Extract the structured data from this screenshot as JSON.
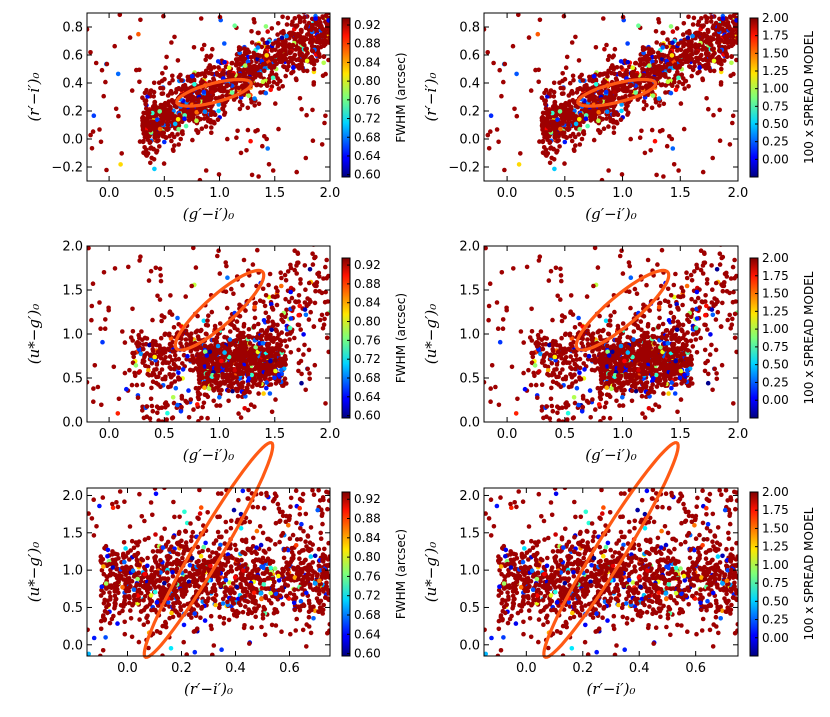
{
  "figure_title": "",
  "colorbars": {
    "fwhm": {
      "label": "FWHM (arcsec)",
      "range": [
        0.595,
        0.935
      ],
      "ticks": [
        "0.92",
        "0.88",
        "0.84",
        "0.80",
        "0.76",
        "0.72",
        "0.68",
        "0.64",
        "0.60"
      ]
    },
    "spread": {
      "label": "100 x SPREAD MODEL",
      "range": [
        -0.25,
        2.0
      ],
      "ticks": [
        "2.00",
        "1.75",
        "1.50",
        "1.25",
        "1.00",
        "0.75",
        "0.50",
        "0.25",
        "0.00"
      ]
    }
  },
  "colormap": "jet",
  "ellipse_color": "#ff5a14",
  "chart_data": [
    {
      "id": "p1",
      "type": "scatter",
      "color_by": "fwhm",
      "xlabel": "(g′−i′)₀",
      "ylabel": "(r′−i′)₀",
      "xlim": [
        -0.2,
        2.0
      ],
      "ylim": [
        -0.3,
        0.9
      ],
      "xticks": [
        "0.0",
        "0.5",
        "1.0",
        "1.5",
        "2.0"
      ],
      "xtick_values": [
        0,
        0.5,
        1,
        1.5,
        2
      ],
      "yticks": [
        "−0.2",
        "0.0",
        "0.2",
        "0.4",
        "0.6",
        "0.8"
      ],
      "ytick_values": [
        -0.2,
        0,
        0.2,
        0.4,
        0.6,
        0.8
      ],
      "ellipse": {
        "cx": 0.95,
        "cy": 0.33,
        "rx": 0.36,
        "ry": 0.065,
        "angle_deg": 22
      },
      "n_points": 1500,
      "seed": 11,
      "clusters": [
        {
          "weight": 0.82,
          "x": [
            0.3,
            2.0
          ],
          "slope": 0.42,
          "intercept": -0.05,
          "scatter": 0.11
        },
        {
          "weight": 0.1,
          "x": [
            0.3,
            0.9
          ],
          "slope": 0.35,
          "intercept": -0.05,
          "scatter": 0.05
        }
      ]
    },
    {
      "id": "p2",
      "type": "scatter",
      "color_by": "spread",
      "xlabel": "(g′−i′)₀",
      "ylabel": "(r′−i′)₀",
      "xlim": [
        -0.2,
        2.0
      ],
      "ylim": [
        -0.3,
        0.9
      ],
      "xticks": [
        "0.0",
        "0.5",
        "1.0",
        "1.5",
        "2.0"
      ],
      "xtick_values": [
        0,
        0.5,
        1,
        1.5,
        2
      ],
      "yticks": [
        "−0.2",
        "0.0",
        "0.2",
        "0.4",
        "0.6",
        "0.8"
      ],
      "ytick_values": [
        -0.2,
        0,
        0.2,
        0.4,
        0.6,
        0.8
      ],
      "ellipse": {
        "cx": 0.95,
        "cy": 0.33,
        "rx": 0.36,
        "ry": 0.065,
        "angle_deg": 22
      },
      "n_points": 1500,
      "seed": 11,
      "clusters": [
        {
          "weight": 0.82,
          "x": [
            0.3,
            2.0
          ],
          "slope": 0.42,
          "intercept": -0.05,
          "scatter": 0.11
        },
        {
          "weight": 0.1,
          "x": [
            0.3,
            0.9
          ],
          "slope": 0.35,
          "intercept": -0.05,
          "scatter": 0.05
        }
      ]
    },
    {
      "id": "p3",
      "type": "scatter",
      "color_by": "fwhm",
      "xlabel": "(g′−i′)₀",
      "ylabel": "(u*−g′)₀",
      "xlim": [
        -0.2,
        2.0
      ],
      "ylim": [
        0.0,
        2.0
      ],
      "xticks": [
        "0.0",
        "0.5",
        "1.0",
        "1.5",
        "2.0"
      ],
      "xtick_values": [
        0,
        0.5,
        1,
        1.5,
        2
      ],
      "yticks": [
        "0.0",
        "0.5",
        "1.0",
        "1.5",
        "2.0"
      ],
      "ytick_values": [
        0,
        0.5,
        1,
        1.5,
        2
      ],
      "ellipse": {
        "cx": 1.0,
        "cy": 1.27,
        "rx": 0.62,
        "ry": 0.14,
        "angle_deg": 52
      },
      "n_points": 1500,
      "seed": 23,
      "clusters": [
        {
          "weight": 0.55,
          "x": [
            0.8,
            1.6
          ],
          "slope": 0.1,
          "intercept": 0.55,
          "scatter": 0.17
        },
        {
          "weight": 0.3,
          "x": [
            0.3,
            2.0
          ],
          "slope": 0.7,
          "intercept": 0.1,
          "scatter": 0.35
        },
        {
          "weight": 0.1,
          "x": [
            0.2,
            0.8
          ],
          "slope": 0.2,
          "intercept": 0.7,
          "scatter": 0.15
        }
      ]
    },
    {
      "id": "p4",
      "type": "scatter",
      "color_by": "spread",
      "xlabel": "(g′−i′)₀",
      "ylabel": "(u*−g′)₀",
      "xlim": [
        -0.2,
        2.0
      ],
      "ylim": [
        0.0,
        2.0
      ],
      "xticks": [
        "0.0",
        "0.5",
        "1.0",
        "1.5",
        "2.0"
      ],
      "xtick_values": [
        0,
        0.5,
        1,
        1.5,
        2
      ],
      "yticks": [
        "0.0",
        "0.5",
        "1.0",
        "1.5",
        "2.0"
      ],
      "ytick_values": [
        0,
        0.5,
        1,
        1.5,
        2
      ],
      "ellipse": {
        "cx": 1.0,
        "cy": 1.27,
        "rx": 0.62,
        "ry": 0.14,
        "angle_deg": 52
      },
      "n_points": 1500,
      "seed": 23,
      "clusters": [
        {
          "weight": 0.55,
          "x": [
            0.8,
            1.6
          ],
          "slope": 0.1,
          "intercept": 0.55,
          "scatter": 0.17
        },
        {
          "weight": 0.3,
          "x": [
            0.3,
            2.0
          ],
          "slope": 0.7,
          "intercept": 0.1,
          "scatter": 0.35
        },
        {
          "weight": 0.1,
          "x": [
            0.2,
            0.8
          ],
          "slope": 0.2,
          "intercept": 0.7,
          "scatter": 0.15
        }
      ]
    },
    {
      "id": "p5",
      "type": "scatter",
      "color_by": "fwhm",
      "xlabel": "(r′−i′)₀",
      "ylabel": "(u*−g′)₀",
      "xlim": [
        -0.15,
        0.75
      ],
      "ylim": [
        -0.15,
        2.1
      ],
      "xticks": [
        "0.0",
        "0.2",
        "0.4",
        "0.6"
      ],
      "xtick_values": [
        0,
        0.2,
        0.4,
        0.6
      ],
      "yticks": [
        "0.0",
        "0.5",
        "1.0",
        "1.5",
        "2.0"
      ],
      "ytick_values": [
        0,
        0.5,
        1,
        1.5,
        2
      ],
      "ellipse": {
        "cx": 0.3,
        "cy": 1.27,
        "rx": 0.62,
        "ry": 0.14,
        "angle_deg": 68
      },
      "n_points": 1500,
      "seed": 37,
      "clusters": [
        {
          "weight": 0.82,
          "x": [
            -0.1,
            0.75
          ],
          "slope": 0.0,
          "intercept": 0.85,
          "scatter": 0.28
        },
        {
          "weight": 0.12,
          "x": [
            0.1,
            0.75
          ],
          "slope": 1.8,
          "intercept": 0.8,
          "scatter": 0.35
        }
      ]
    },
    {
      "id": "p6",
      "type": "scatter",
      "color_by": "spread",
      "xlabel": "(r′−i′)₀",
      "ylabel": "(u*−g′)₀",
      "xlim": [
        -0.15,
        0.75
      ],
      "ylim": [
        -0.15,
        2.1
      ],
      "xticks": [
        "0.0",
        "0.2",
        "0.4",
        "0.6"
      ],
      "xtick_values": [
        0,
        0.2,
        0.4,
        0.6
      ],
      "yticks": [
        "0.0",
        "0.5",
        "1.0",
        "1.5",
        "2.0"
      ],
      "ytick_values": [
        0,
        0.5,
        1,
        1.5,
        2
      ],
      "ellipse": {
        "cx": 0.3,
        "cy": 1.27,
        "rx": 0.62,
        "ry": 0.14,
        "angle_deg": 68
      },
      "n_points": 1500,
      "seed": 37,
      "clusters": [
        {
          "weight": 0.82,
          "x": [
            -0.1,
            0.75
          ],
          "slope": 0.0,
          "intercept": 0.85,
          "scatter": 0.28
        },
        {
          "weight": 0.12,
          "x": [
            0.1,
            0.75
          ],
          "slope": 1.8,
          "intercept": 0.8,
          "scatter": 0.35
        }
      ]
    }
  ]
}
